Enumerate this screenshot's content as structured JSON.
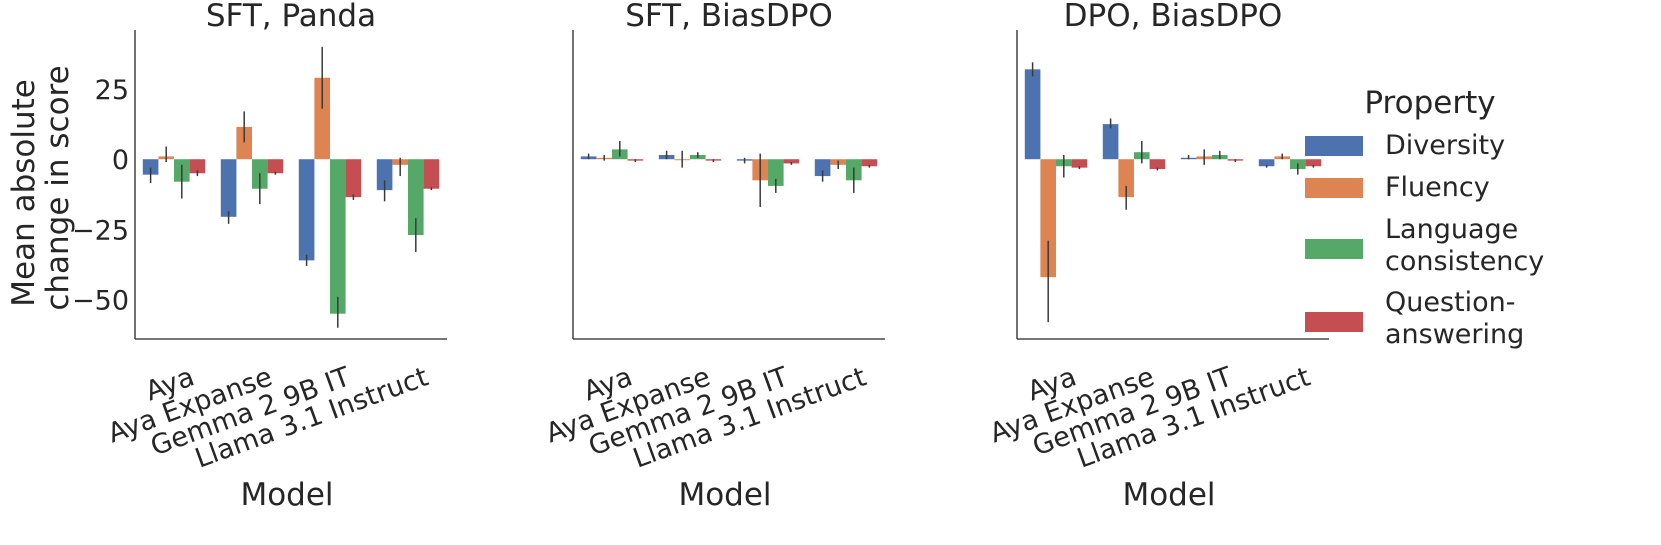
{
  "chart_data": [
    {
      "type": "bar",
      "title": "SFT, Panda",
      "xlabel": "Model",
      "ylabel": "Mean absolute change in score",
      "ylim": [
        -64,
        46
      ],
      "yticks": [
        25,
        0,
        -25,
        -50
      ],
      "ytick_labels": [
        "25",
        "0",
        "−25",
        "−50"
      ],
      "categories": [
        "Aya",
        "Aya Expanse",
        "Gemma 2 9B IT",
        "Llama 3.1 Instruct"
      ],
      "series": [
        {
          "name": "Diversity",
          "values": [
            -5.5,
            -20.5,
            -36.0,
            -11.0
          ],
          "err_low": [
            -8.5,
            -23.0,
            -38.0,
            -15.0
          ],
          "err_high": [
            -3.0,
            -18.5,
            -34.0,
            -7.5
          ]
        },
        {
          "name": "Fluency",
          "values": [
            1.0,
            11.5,
            29.0,
            -2.0
          ],
          "err_low": [
            -1.0,
            6.0,
            18.0,
            -6.0
          ],
          "err_high": [
            4.5,
            17.0,
            40.0,
            0.5
          ]
        },
        {
          "name": "Language consistency",
          "values": [
            -8.0,
            -10.5,
            -55.0,
            -27.0
          ],
          "err_low": [
            -14.0,
            -16.0,
            -60.0,
            -33.0
          ],
          "err_high": [
            -2.0,
            -5.0,
            -49.0,
            -21.0
          ]
        },
        {
          "name": "Question-answering",
          "values": [
            -5.0,
            -5.0,
            -13.5,
            -10.5
          ],
          "err_low": [
            -6.0,
            -5.5,
            -14.5,
            -11.0
          ],
          "err_high": [
            -4.0,
            -4.5,
            -12.5,
            -10.0
          ]
        }
      ]
    },
    {
      "type": "bar",
      "title": "SFT, BiasDPO",
      "xlabel": "Model",
      "ylabel": "",
      "categories": [
        "Aya",
        "Aya Expanse",
        "Gemma 2 9B IT",
        "Llama 3.1 Instruct"
      ],
      "series": [
        {
          "name": "Diversity",
          "values": [
            1.0,
            1.5,
            -0.5,
            -6.0
          ],
          "err_low": [
            0.0,
            0.0,
            -1.5,
            -8.0
          ],
          "err_high": [
            2.0,
            3.0,
            0.5,
            -4.0
          ]
        },
        {
          "name": "Fluency",
          "values": [
            0.5,
            0.0,
            -7.5,
            -2.0
          ],
          "err_low": [
            -0.5,
            -3.0,
            -17.0,
            -3.5
          ],
          "err_high": [
            1.5,
            3.0,
            2.0,
            -0.5
          ]
        },
        {
          "name": "Language consistency",
          "values": [
            3.5,
            1.5,
            -9.5,
            -7.5
          ],
          "err_low": [
            1.0,
            0.5,
            -12.0,
            -12.0
          ],
          "err_high": [
            6.5,
            2.5,
            -7.0,
            -3.0
          ]
        },
        {
          "name": "Question-answering",
          "values": [
            -0.5,
            -0.5,
            -1.5,
            -2.5
          ],
          "err_low": [
            -1.0,
            -1.0,
            -2.0,
            -3.0
          ],
          "err_high": [
            0.0,
            0.0,
            -1.0,
            -2.0
          ]
        }
      ]
    },
    {
      "type": "bar",
      "title": "DPO, BiasDPO",
      "xlabel": "Model",
      "ylabel": "",
      "categories": [
        "Aya",
        "Aya Expanse",
        "Gemma 2 9B IT",
        "Llama 3.1 Instruct"
      ],
      "series": [
        {
          "name": "Diversity",
          "values": [
            32.0,
            12.5,
            0.5,
            -2.5
          ],
          "err_low": [
            29.5,
            11.0,
            0.0,
            -3.0
          ],
          "err_high": [
            34.5,
            14.5,
            1.5,
            -2.0
          ]
        },
        {
          "name": "Fluency",
          "values": [
            -42.0,
            -13.5,
            1.0,
            1.0
          ],
          "err_low": [
            -58.0,
            -18.0,
            -2.0,
            0.0
          ],
          "err_high": [
            -29.0,
            -9.5,
            3.5,
            2.0
          ]
        },
        {
          "name": "Language consistency",
          "values": [
            -2.5,
            2.5,
            1.5,
            -3.5
          ],
          "err_low": [
            -6.5,
            -1.5,
            0.0,
            -5.5
          ],
          "err_high": [
            1.5,
            6.5,
            3.0,
            -1.5
          ]
        },
        {
          "name": "Question-answering",
          "values": [
            -3.0,
            -3.5,
            -0.5,
            -2.5
          ],
          "err_low": [
            -3.5,
            -4.0,
            -1.0,
            -3.0
          ],
          "err_high": [
            -2.5,
            -3.0,
            0.0,
            -2.0
          ]
        }
      ]
    }
  ],
  "legend": {
    "title": "Property",
    "placement": "right",
    "entries": [
      {
        "label_lines": [
          "Diversity"
        ],
        "color": "#4c72b0"
      },
      {
        "label_lines": [
          "Fluency"
        ],
        "color": "#dd8452"
      },
      {
        "label_lines": [
          "Language",
          "consistency"
        ],
        "color": "#55a868"
      },
      {
        "label_lines": [
          "Question-",
          "answering"
        ],
        "color": "#c44e52"
      }
    ]
  },
  "colors": {
    "Diversity": "#4c72b0",
    "Fluency": "#dd8452",
    "Language consistency": "#55a868",
    "Question-answering": "#c44e52"
  }
}
